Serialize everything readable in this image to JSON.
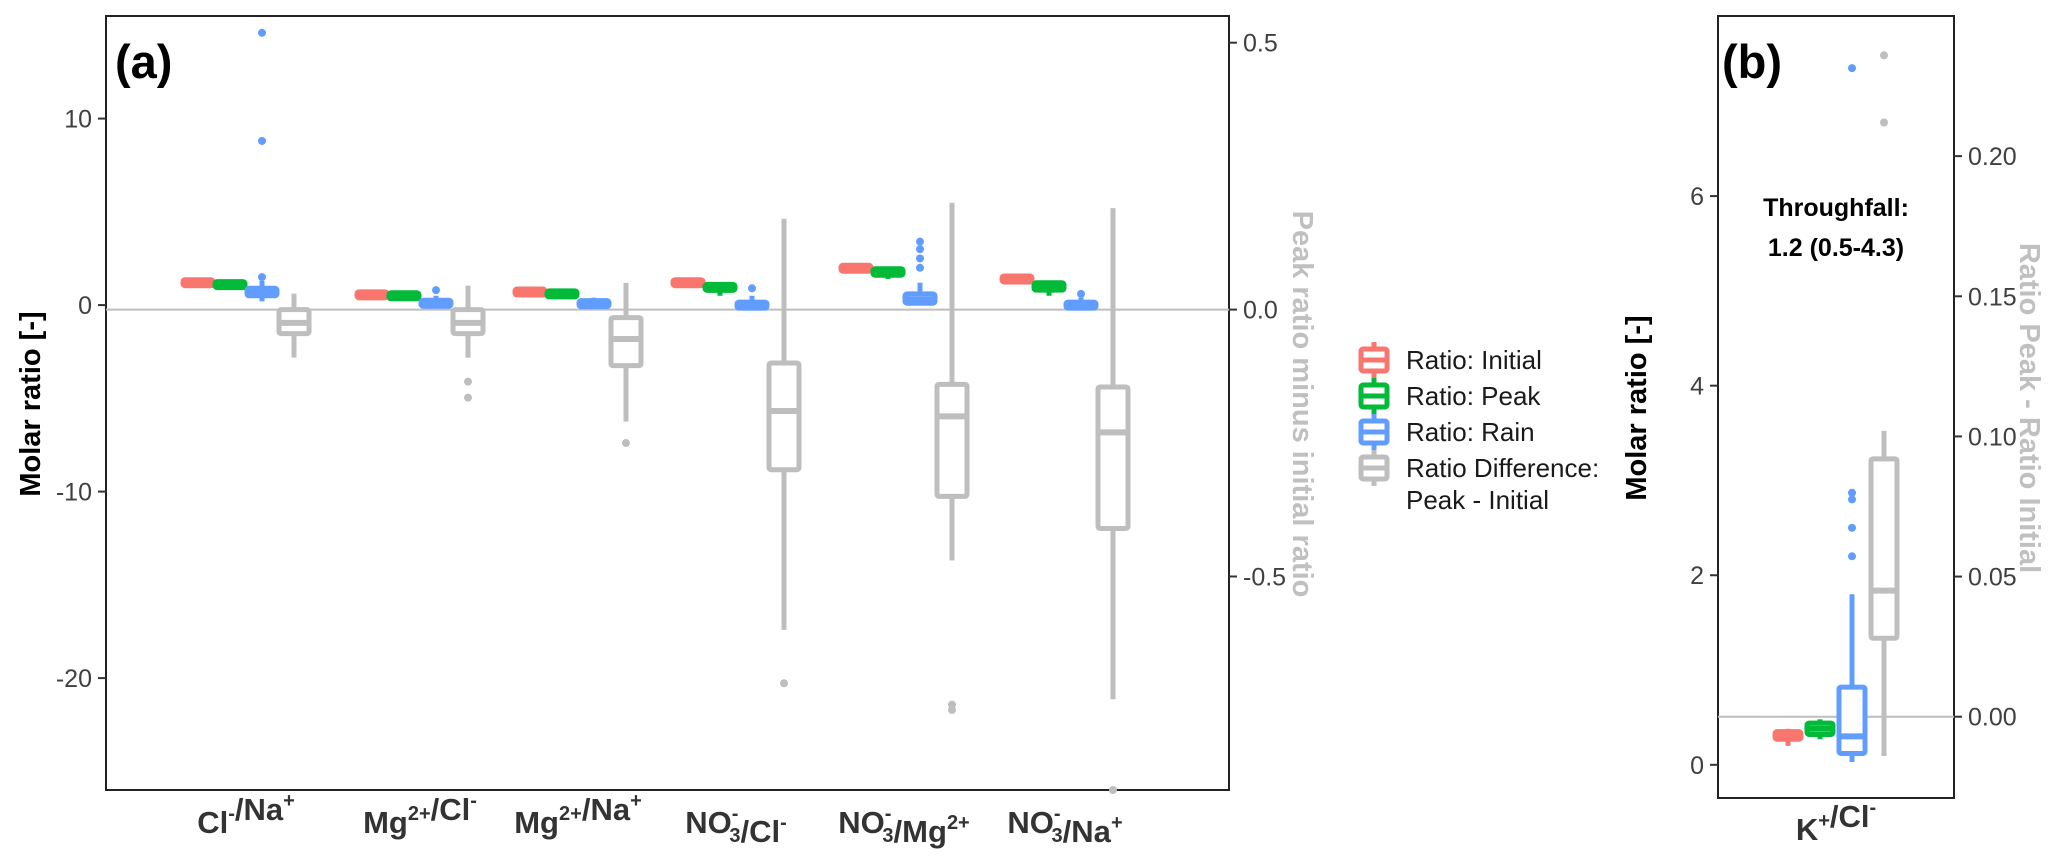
{
  "panels": [
    {
      "label": "(a)",
      "left_axis": {
        "title": "Molar ratio [-]",
        "ticks": [
          10,
          0,
          -10,
          -20
        ],
        "lim": [
          -26,
          15.5
        ]
      },
      "right_axis": {
        "title": "Peak ratio minus initial ratio",
        "ticks": [
          0.5,
          0.0,
          -0.5
        ],
        "tick_labels": [
          "0.5",
          "0.0",
          "-0.5"
        ],
        "lim": [
          -0.9,
          0.55
        ]
      },
      "categories": [
        {
          "id": "cl_na",
          "parts": [
            [
              "Cl",
              "-",
              ""
            ],
            [
              "/",
              "",
              ""
            ],
            [
              "Na",
              "+",
              ""
            ]
          ]
        },
        {
          "id": "mg_cl",
          "parts": [
            [
              "Mg",
              "2+",
              ""
            ],
            [
              "/",
              "",
              ""
            ],
            [
              "Cl",
              "-",
              ""
            ]
          ]
        },
        {
          "id": "mg_na",
          "parts": [
            [
              "Mg",
              "2+",
              ""
            ],
            [
              "/",
              "",
              ""
            ],
            [
              "Na",
              "+",
              ""
            ]
          ]
        },
        {
          "id": "no3_cl",
          "parts": [
            [
              "NO",
              "-",
              "3"
            ],
            [
              "/",
              "",
              ""
            ],
            [
              "Cl",
              "-",
              ""
            ]
          ]
        },
        {
          "id": "no3_mg",
          "parts": [
            [
              "NO",
              "-",
              "3"
            ],
            [
              "/",
              "",
              ""
            ],
            [
              "Mg",
              "2+",
              ""
            ]
          ]
        },
        {
          "id": "no3_na",
          "parts": [
            [
              "NO",
              "-",
              "3"
            ],
            [
              "/",
              "",
              ""
            ],
            [
              "Na",
              "+",
              ""
            ]
          ]
        }
      ]
    },
    {
      "label": "(b)",
      "left_axis": {
        "title": "Molar ratio [-]",
        "ticks": [
          6,
          4,
          2,
          0
        ],
        "lim": [
          -0.35,
          7.9
        ]
      },
      "right_axis": {
        "title": "Ratio Peak - Ratio Initial",
        "ticks": [
          0.2,
          0.15,
          0.1,
          0.05,
          0.0
        ],
        "tick_labels": [
          "0.20",
          "0.15",
          "0.10",
          "0.05",
          "0.00"
        ],
        "lim": [
          -0.029,
          0.25
        ]
      },
      "categories": [
        {
          "id": "k_cl",
          "parts": [
            [
              "K",
              "+",
              ""
            ],
            [
              "/",
              "",
              ""
            ],
            [
              "Cl",
              "-",
              ""
            ]
          ]
        }
      ],
      "annotation": {
        "line1": "Throughfall:",
        "line2": "1.2 (0.5-4.3)"
      }
    }
  ],
  "legend": {
    "items": [
      {
        "label": "Ratio: Initial",
        "color": "#F8766D"
      },
      {
        "label": "Ratio: Peak",
        "color": "#00BA38"
      },
      {
        "label": "Ratio: Rain",
        "color": "#619CFF"
      },
      {
        "label": "Ratio Difference:",
        "label2": "Peak - Initial",
        "color": "#BEBEBE"
      }
    ]
  },
  "chart_data": [
    {
      "type": "box",
      "panel": "(a)",
      "categories": [
        "Cl-/Na+",
        "Mg2+/Cl-",
        "Mg2+/Na+",
        "NO3-/Cl-",
        "NO3-/Mg2+",
        "NO3-/Na+"
      ],
      "ylabel": "Molar ratio [-]",
      "y2label": "Peak ratio minus initial ratio",
      "ylim": [
        -26,
        15.5
      ],
      "y2lim": [
        -0.9,
        0.55
      ],
      "hline": {
        "axis": "y2",
        "value": 0.0
      },
      "series": [
        {
          "name": "Ratio: Initial",
          "axis": "y",
          "color": "#F8766D",
          "boxes": [
            {
              "q1": 1.1,
              "med": 1.2,
              "q3": 1.3,
              "lo": 1.0,
              "hi": 1.4,
              "out": []
            },
            {
              "q1": 0.45,
              "med": 0.55,
              "q3": 0.65,
              "lo": 0.4,
              "hi": 0.7,
              "out": []
            },
            {
              "q1": 0.6,
              "med": 0.7,
              "q3": 0.8,
              "lo": 0.55,
              "hi": 0.85,
              "out": []
            },
            {
              "q1": 1.1,
              "med": 1.2,
              "q3": 1.3,
              "lo": 1.0,
              "hi": 1.4,
              "out": []
            },
            {
              "q1": 1.85,
              "med": 2.0,
              "q3": 2.1,
              "lo": 1.8,
              "hi": 2.15,
              "out": []
            },
            {
              "q1": 1.3,
              "med": 1.4,
              "q3": 1.5,
              "lo": 1.2,
              "hi": 1.55,
              "out": []
            }
          ]
        },
        {
          "name": "Ratio: Peak",
          "axis": "y",
          "color": "#00BA38",
          "boxes": [
            {
              "q1": 1.0,
              "med": 1.1,
              "q3": 1.2,
              "lo": 0.9,
              "hi": 1.3,
              "out": []
            },
            {
              "q1": 0.4,
              "med": 0.5,
              "q3": 0.6,
              "lo": 0.3,
              "hi": 0.65,
              "out": []
            },
            {
              "q1": 0.5,
              "med": 0.6,
              "q3": 0.7,
              "lo": 0.4,
              "hi": 0.8,
              "out": []
            },
            {
              "q1": 0.8,
              "med": 1.0,
              "q3": 1.1,
              "lo": 0.5,
              "hi": 1.2,
              "out": []
            },
            {
              "q1": 1.6,
              "med": 1.8,
              "q3": 1.95,
              "lo": 1.4,
              "hi": 2.05,
              "out": []
            },
            {
              "q1": 0.8,
              "med": 1.0,
              "q3": 1.2,
              "lo": 0.5,
              "hi": 1.3,
              "out": []
            }
          ]
        },
        {
          "name": "Ratio: Rain",
          "axis": "y",
          "color": "#619CFF",
          "boxes": [
            {
              "q1": 0.5,
              "med": 0.7,
              "q3": 0.9,
              "lo": 0.2,
              "hi": 1.3,
              "out": [
                1.5,
                8.8,
                14.6
              ]
            },
            {
              "q1": 0.0,
              "med": 0.1,
              "q3": 0.2,
              "lo": -0.05,
              "hi": 0.5,
              "out": [
                0.8
              ]
            },
            {
              "q1": -0.05,
              "med": 0.05,
              "q3": 0.2,
              "lo": -0.1,
              "hi": 0.4,
              "out": []
            },
            {
              "q1": -0.1,
              "med": 0.0,
              "q3": 0.1,
              "lo": -0.2,
              "hi": 0.5,
              "out": [
                0.9
              ]
            },
            {
              "q1": 0.1,
              "med": 0.3,
              "q3": 0.6,
              "lo": 0.0,
              "hi": 1.2,
              "out": [
                2.0,
                2.5,
                3.0,
                3.4
              ]
            },
            {
              "q1": -0.1,
              "med": 0.0,
              "q3": 0.1,
              "lo": -0.2,
              "hi": 0.4,
              "out": [
                0.6
              ]
            }
          ]
        },
        {
          "name": "Ratio Difference: Peak - Initial",
          "axis": "y2",
          "color": "#BEBEBE",
          "boxes": [
            {
              "q1": -0.045,
              "med": -0.025,
              "q3": 0.0,
              "lo": -0.09,
              "hi": 0.03,
              "out": []
            },
            {
              "q1": -0.045,
              "med": -0.025,
              "q3": 0.0,
              "lo": -0.09,
              "hi": 0.045,
              "out": [
                -0.135,
                -0.165
              ]
            },
            {
              "q1": -0.105,
              "med": -0.055,
              "q3": -0.015,
              "lo": -0.21,
              "hi": 0.05,
              "out": [
                -0.25
              ]
            },
            {
              "q1": -0.3,
              "med": -0.19,
              "q3": -0.1,
              "lo": -0.6,
              "hi": 0.17,
              "out": [
                -0.7
              ]
            },
            {
              "q1": -0.35,
              "med": -0.2,
              "q3": -0.14,
              "lo": -0.47,
              "hi": 0.2,
              "out": [
                -0.74,
                -0.75
              ]
            },
            {
              "q1": -0.41,
              "med": -0.23,
              "q3": -0.145,
              "lo": -0.73,
              "hi": 0.19,
              "out": [
                -0.9
              ]
            }
          ]
        }
      ]
    },
    {
      "type": "box",
      "panel": "(b)",
      "categories": [
        "K+/Cl-"
      ],
      "ylabel": "Molar ratio [-]",
      "y2label": "Ratio Peak - Ratio Initial",
      "ylim": [
        -0.35,
        7.9
      ],
      "y2lim": [
        -0.029,
        0.25
      ],
      "hline": {
        "axis": "y2",
        "value": 0.0
      },
      "series": [
        {
          "name": "Ratio: Initial",
          "axis": "y",
          "color": "#F8766D",
          "boxes": [
            {
              "q1": 0.27,
              "med": 0.3,
              "q3": 0.35,
              "lo": 0.2,
              "hi": 0.38,
              "out": []
            }
          ]
        },
        {
          "name": "Ratio: Peak",
          "axis": "y",
          "color": "#00BA38",
          "boxes": [
            {
              "q1": 0.32,
              "med": 0.38,
              "q3": 0.44,
              "lo": 0.27,
              "hi": 0.48,
              "out": []
            }
          ]
        },
        {
          "name": "Ratio: Rain",
          "axis": "y",
          "color": "#619CFF",
          "boxes": [
            {
              "q1": 0.12,
              "med": 0.3,
              "q3": 0.82,
              "lo": 0.03,
              "hi": 1.8,
              "out": [
                2.2,
                2.5,
                2.8,
                2.87,
                7.35
              ]
            }
          ]
        },
        {
          "name": "Ratio Difference: Peak - Initial",
          "axis": "y2",
          "color": "#BEBEBE",
          "boxes": [
            {
              "q1": 0.028,
              "med": 0.045,
              "q3": 0.092,
              "lo": -0.014,
              "hi": 0.102,
              "out": [
                0.212,
                0.236
              ]
            }
          ]
        }
      ],
      "annotation": "Throughfall: 1.2 (0.5-4.3)"
    }
  ]
}
